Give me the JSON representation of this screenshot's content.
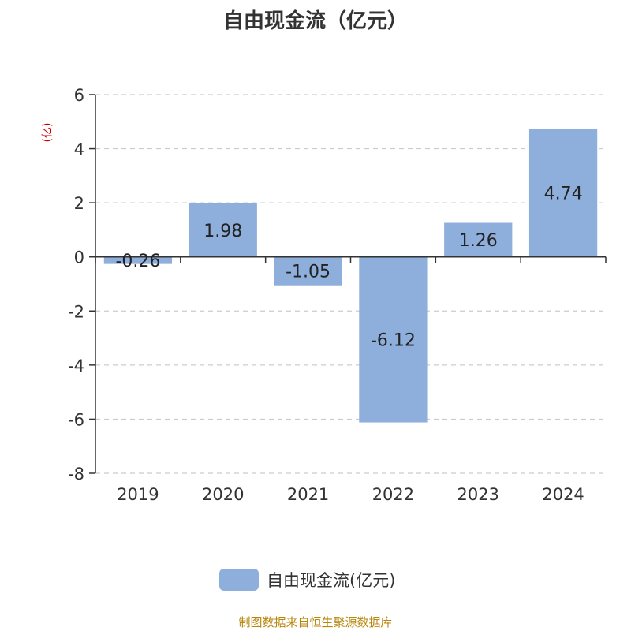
{
  "chart_data": {
    "type": "bar",
    "title": "自由现金流（亿元）",
    "ylabel": "(亿)",
    "categories": [
      "2019",
      "2020",
      "2021",
      "2022",
      "2023",
      "2024"
    ],
    "series": [
      {
        "name": "自由现金流(亿元)",
        "values": [
          -0.26,
          1.98,
          -1.05,
          -6.12,
          1.26,
          4.74
        ]
      }
    ],
    "data_labels": [
      "-0.26",
      "1.98",
      "-1.05",
      "-6.12",
      "1.26",
      "4.74"
    ],
    "ylim": [
      -8,
      6
    ],
    "yticks": [
      6,
      4,
      2,
      0,
      -2,
      -4,
      -6,
      -8
    ],
    "ytick_labels": [
      "6",
      "4",
      "2",
      "0",
      "-2",
      "-4",
      "-6",
      "-8"
    ],
    "grid": true,
    "legend_position": "bottom-center",
    "colors": {
      "bar": "#8eaedb",
      "grid": "#cccccc",
      "axis": "#333333"
    }
  },
  "source": "制图数据来自恒生聚源数据库"
}
